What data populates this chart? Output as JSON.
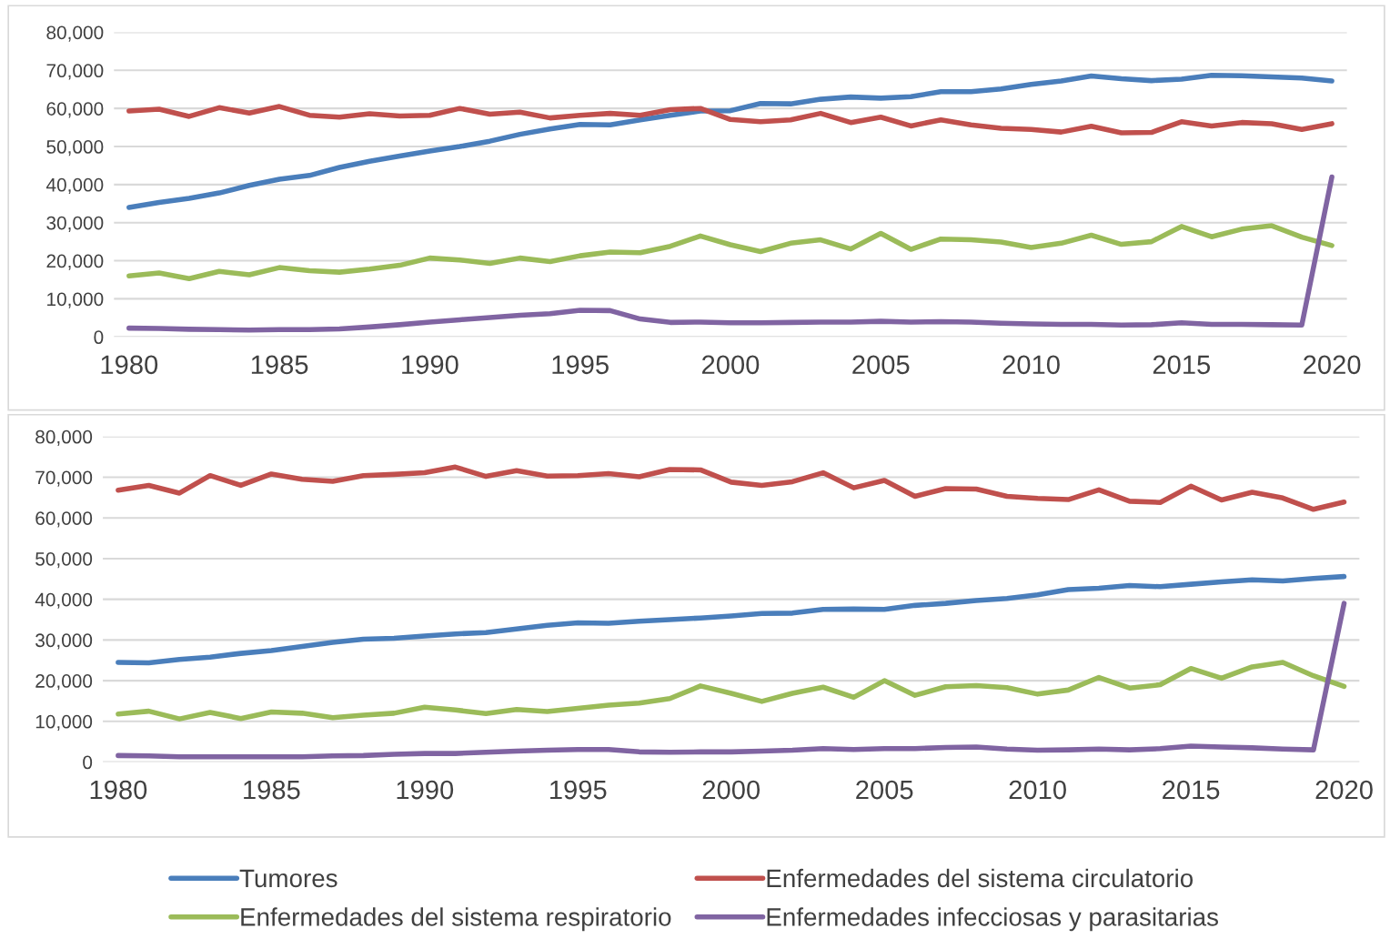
{
  "chart_data": [
    {
      "type": "line",
      "x": [
        1980,
        1981,
        1982,
        1983,
        1984,
        1985,
        1986,
        1987,
        1988,
        1989,
        1990,
        1991,
        1992,
        1993,
        1994,
        1995,
        1996,
        1997,
        1998,
        1999,
        2000,
        2001,
        2002,
        2003,
        2004,
        2005,
        2006,
        2007,
        2008,
        2009,
        2010,
        2011,
        2012,
        2013,
        2014,
        2015,
        2016,
        2017,
        2018,
        2019,
        2020
      ],
      "xlim": [
        1979.5,
        2020.5
      ],
      "xticks": [
        1980,
        1985,
        1990,
        1995,
        2000,
        2005,
        2010,
        2015,
        2020
      ],
      "ylim": [
        0,
        80000
      ],
      "yticks": [
        {
          "value": 0,
          "label": "0"
        },
        {
          "value": 10000,
          "label": "10,000"
        },
        {
          "value": 20000,
          "label": "20,000"
        },
        {
          "value": 30000,
          "label": "30,000"
        },
        {
          "value": 40000,
          "label": "40,000"
        },
        {
          "value": 50000,
          "label": "50,000"
        },
        {
          "value": 60000,
          "label": "60,000"
        },
        {
          "value": 70000,
          "label": "70,000"
        },
        {
          "value": 80000,
          "label": "80,000"
        }
      ],
      "grid": "y",
      "marker": "none",
      "line_style": "solid",
      "legend": "bottom",
      "series": [
        {
          "name": "Tumores",
          "color": "#4a7ebb",
          "values": [
            34000,
            35300,
            36400,
            37800,
            39800,
            41400,
            42400,
            44500,
            46100,
            47500,
            48800,
            50000,
            51400,
            53200,
            54600,
            55800,
            55700,
            57000,
            58200,
            59300,
            59400,
            61300,
            61200,
            62400,
            63000,
            62700,
            63100,
            64400,
            64400,
            65100,
            66300,
            67200,
            68500,
            67800,
            67300,
            67700,
            68700,
            68600,
            68300,
            68000,
            67200
          ]
        },
        {
          "name": "Enfermedades del sistema circulatorio",
          "color": "#c0504d",
          "values": [
            59300,
            59800,
            57900,
            60200,
            58800,
            60500,
            58200,
            57700,
            58600,
            58000,
            58200,
            60000,
            58500,
            59000,
            57500,
            58200,
            58700,
            58200,
            59700,
            60000,
            57100,
            56500,
            57000,
            58700,
            56300,
            57700,
            55400,
            57000,
            55700,
            54800,
            54500,
            53800,
            55300,
            53600,
            53700,
            56500,
            55400,
            56300,
            56000,
            54500,
            56000
          ]
        },
        {
          "name": "Enfermedades del sistema respiratorio",
          "color": "#9bbb59",
          "values": [
            16000,
            16800,
            15300,
            17200,
            16300,
            18200,
            17400,
            17000,
            17800,
            18800,
            20700,
            20200,
            19300,
            20700,
            19800,
            21300,
            22300,
            22100,
            23800,
            26500,
            24200,
            22400,
            24600,
            25500,
            23100,
            27200,
            23000,
            25700,
            25500,
            24900,
            23500,
            24600,
            26700,
            24300,
            25000,
            29000,
            26300,
            28300,
            29200,
            26200,
            24000
          ]
        },
        {
          "name": "Enfermedades infecciosas y parasitarias",
          "color": "#8064a2",
          "values": [
            2300,
            2200,
            2000,
            1900,
            1800,
            1900,
            1900,
            2100,
            2600,
            3200,
            3900,
            4500,
            5100,
            5700,
            6100,
            7000,
            6900,
            4700,
            3800,
            3900,
            3700,
            3700,
            3800,
            3900,
            3900,
            4100,
            3900,
            4000,
            3900,
            3600,
            3400,
            3300,
            3300,
            3100,
            3200,
            3700,
            3300,
            3300,
            3200,
            3100,
            42000
          ]
        }
      ]
    },
    {
      "type": "line",
      "x": [
        1980,
        1981,
        1982,
        1983,
        1984,
        1985,
        1986,
        1987,
        1988,
        1989,
        1990,
        1991,
        1992,
        1993,
        1994,
        1995,
        1996,
        1997,
        1998,
        1999,
        2000,
        2001,
        2002,
        2003,
        2004,
        2005,
        2006,
        2007,
        2008,
        2009,
        2010,
        2011,
        2012,
        2013,
        2014,
        2015,
        2016,
        2017,
        2018,
        2019,
        2020
      ],
      "xlim": [
        1979.5,
        2020.5
      ],
      "xticks": [
        1980,
        1985,
        1990,
        1995,
        2000,
        2005,
        2010,
        2015,
        2020
      ],
      "ylim": [
        0,
        80000
      ],
      "yticks": [
        {
          "value": 0,
          "label": "0"
        },
        {
          "value": 10000,
          "label": "10,000"
        },
        {
          "value": 20000,
          "label": "20,000"
        },
        {
          "value": 30000,
          "label": "30,000"
        },
        {
          "value": 40000,
          "label": "40,000"
        },
        {
          "value": 50000,
          "label": "50,000"
        },
        {
          "value": 60000,
          "label": "60,000"
        },
        {
          "value": 70000,
          "label": "70,000"
        },
        {
          "value": 80000,
          "label": "80,000"
        }
      ],
      "grid": "y",
      "marker": "none",
      "line_style": "solid",
      "legend": "bottom",
      "series": [
        {
          "name": "Tumores",
          "color": "#4a7ebb",
          "values": [
            24500,
            24400,
            25200,
            25800,
            26700,
            27400,
            28400,
            29400,
            30200,
            30400,
            31000,
            31500,
            31800,
            32700,
            33600,
            34200,
            34100,
            34600,
            35000,
            35400,
            35900,
            36500,
            36600,
            37500,
            37600,
            37500,
            38500,
            39000,
            39700,
            40200,
            41100,
            42400,
            42700,
            43400,
            43100,
            43700,
            44300,
            44800,
            44500,
            45100,
            45600
          ]
        },
        {
          "name": "Enfermedades del sistema circulatorio",
          "color": "#c0504d",
          "values": [
            66800,
            68000,
            66100,
            70400,
            68000,
            70800,
            69500,
            69000,
            70400,
            70700,
            71100,
            72500,
            70200,
            71600,
            70300,
            70400,
            70900,
            70100,
            71900,
            71800,
            68800,
            68000,
            68900,
            71100,
            67400,
            69200,
            65300,
            67200,
            67100,
            65300,
            64800,
            64500,
            66900,
            64100,
            63800,
            67800,
            64400,
            66300,
            64900,
            62100,
            63900
          ]
        },
        {
          "name": "Enfermedades del sistema respiratorio",
          "color": "#9bbb59",
          "values": [
            11800,
            12500,
            10600,
            12200,
            10700,
            12300,
            12000,
            10900,
            11500,
            12000,
            13500,
            12800,
            11900,
            12900,
            12400,
            13200,
            14000,
            14500,
            15600,
            18700,
            16900,
            14900,
            16900,
            18400,
            15900,
            20000,
            16400,
            18500,
            18800,
            18300,
            16700,
            17700,
            20800,
            18200,
            19000,
            23000,
            20600,
            23400,
            24500,
            21200,
            18600
          ]
        },
        {
          "name": "Enfermedades infecciosas y parasitarias",
          "color": "#8064a2",
          "values": [
            1600,
            1500,
            1300,
            1300,
            1300,
            1300,
            1300,
            1500,
            1600,
            1900,
            2100,
            2100,
            2400,
            2700,
            2900,
            3100,
            3100,
            2500,
            2400,
            2500,
            2500,
            2700,
            2900,
            3300,
            3100,
            3300,
            3300,
            3600,
            3700,
            3200,
            2900,
            3000,
            3200,
            3000,
            3300,
            3900,
            3700,
            3500,
            3200,
            3000,
            39000
          ]
        }
      ]
    }
  ]
}
